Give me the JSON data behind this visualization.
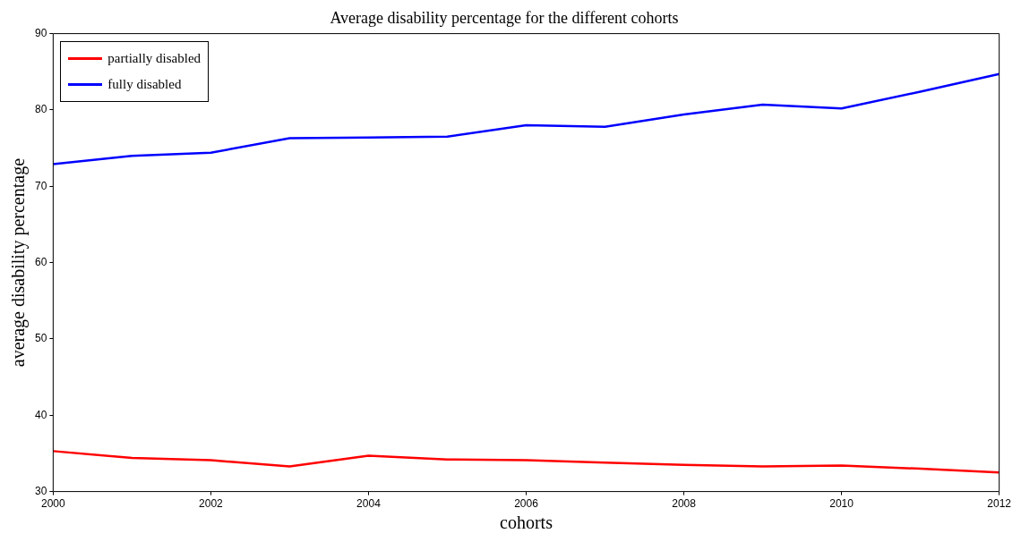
{
  "chart_data": {
    "type": "line",
    "title": "Average disability percentage for the different cohorts",
    "xlabel": "cohorts",
    "ylabel": "average disability percentage",
    "x": [
      2000,
      2001,
      2002,
      2003,
      2004,
      2005,
      2006,
      2007,
      2008,
      2009,
      2010,
      2011,
      2012
    ],
    "series": [
      {
        "name": "partially disabled",
        "color": "#ff0000",
        "values": [
          35.3,
          34.4,
          34.1,
          33.3,
          34.7,
          34.2,
          34.1,
          33.8,
          33.5,
          33.3,
          33.4,
          33.0,
          32.5
        ]
      },
      {
        "name": "fully disabled",
        "color": "#0000ff",
        "values": [
          72.9,
          74.0,
          74.4,
          76.3,
          76.4,
          76.5,
          78.0,
          77.8,
          79.4,
          80.7,
          80.2,
          82.4,
          84.7
        ]
      }
    ],
    "xlim": [
      2000,
      2012
    ],
    "xticks": [
      2000,
      2002,
      2004,
      2006,
      2008,
      2010,
      2012
    ],
    "ylim": [
      30,
      90
    ],
    "yticks": [
      30,
      40,
      50,
      60,
      70,
      80,
      90
    ],
    "grid": false,
    "legend": "top left",
    "marker": "none",
    "line_style": "solid"
  }
}
